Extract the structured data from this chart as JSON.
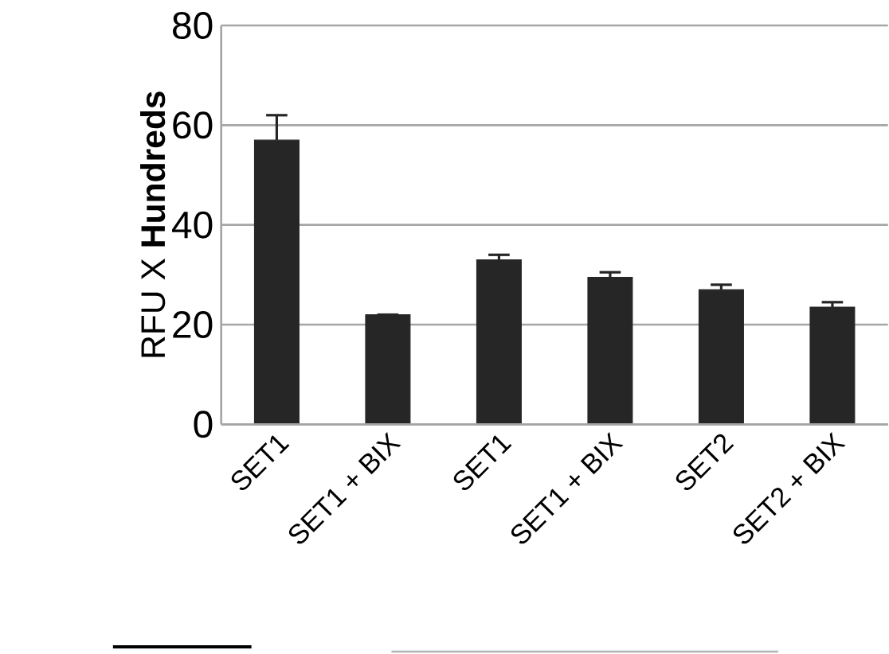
{
  "chart_data": {
    "type": "bar",
    "ylabel": "RFU X **Hundreds**",
    "categories": [
      "SET1",
      "SET1 + BIX",
      "SET1",
      "SET1 + BIX",
      "SET2",
      "SET2 + BIX"
    ],
    "values": [
      57,
      22,
      33,
      29.5,
      27,
      23.5
    ],
    "errors": [
      5,
      null,
      1,
      1,
      1,
      1
    ],
    "color": "#262626",
    "ylim": [
      0,
      80
    ],
    "yticks": [
      0,
      20,
      40,
      60,
      80
    ],
    "grid": "y"
  }
}
